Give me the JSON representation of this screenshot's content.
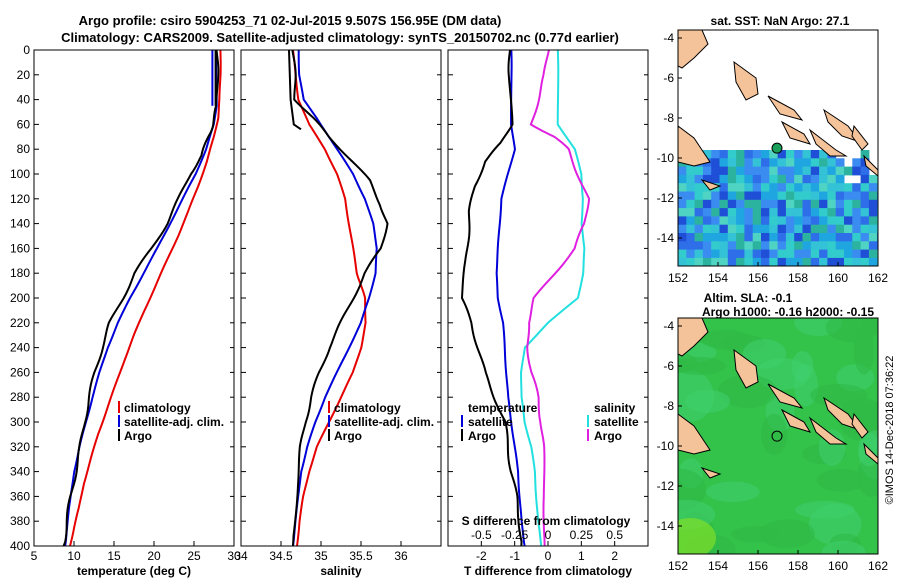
{
  "header": {
    "title_line1": "Argo profile: csiro 5904253_71 02-Jul-2015 9.507S 156.95E (DM data)",
    "title_line2": "Climatology: CARS2009. Satellite-adjusted climatology: synTS_20150702.nc (0.77d earlier)"
  },
  "colors": {
    "climatology": "#e60000",
    "satellite": "#0000d8",
    "argo": "#000000",
    "satellite_salinity": "#22e0e0",
    "climatology_salinity": "#e020e0",
    "land": "#f5c39a"
  },
  "chart_data": [
    {
      "id": "temperature",
      "type": "line",
      "xlabel": "temperature (deg C)",
      "ylabel": "",
      "xlim": [
        5,
        30
      ],
      "ylim": [
        400,
        0
      ],
      "xticks": [
        5,
        10,
        15,
        20,
        25,
        30
      ],
      "yticks": [
        0,
        20,
        40,
        60,
        80,
        100,
        120,
        140,
        160,
        180,
        200,
        220,
        240,
        260,
        280,
        300,
        320,
        340,
        360,
        380,
        400
      ],
      "legend": [
        "climatology",
        "satellite-adj. clim.",
        "Argo"
      ],
      "series": [
        {
          "name": "climatology",
          "color": "#e60000",
          "x": [
            28.3,
            28.3,
            28.2,
            28.0,
            27.5,
            26.6,
            25.5,
            24.3,
            23.0,
            21.6,
            20.2,
            18.8,
            17.5,
            16.3,
            15.2,
            14.1,
            13.0,
            12.1,
            11.2,
            10.6,
            10.0,
            9.5
          ],
          "y": [
            0,
            20,
            40,
            55,
            70,
            90,
            110,
            130,
            150,
            170,
            190,
            210,
            230,
            250,
            270,
            290,
            310,
            330,
            350,
            370,
            385,
            400
          ]
        },
        {
          "name": "satellite-adj. clim.",
          "color": "#0000d8",
          "x": [
            27.8,
            27.8,
            27.8,
            27.5,
            26.5,
            25.2,
            23.6,
            22.0,
            20.4,
            18.7,
            17.0,
            15.5,
            14.2,
            13.2,
            12.3,
            11.5,
            10.7,
            10.0,
            9.4,
            8.9
          ],
          "y": [
            0,
            20,
            45,
            60,
            80,
            100,
            120,
            140,
            160,
            180,
            200,
            220,
            240,
            260,
            280,
            300,
            320,
            340,
            370,
            400
          ]
        },
        {
          "name": "Argo",
          "color": "#000000",
          "x": [
            27.9,
            27.9,
            27.9,
            27.3,
            26.8,
            26.0,
            24.5,
            23.1,
            21.6,
            19.7,
            17.6,
            16.1,
            14.5,
            13.5,
            12.6,
            11.9,
            11.3,
            10.8,
            10.2,
            9.6,
            9.1,
            8.7
          ],
          "y": [
            0,
            20,
            45,
            60,
            70,
            85,
            100,
            120,
            140,
            160,
            180,
            200,
            220,
            240,
            260,
            280,
            300,
            320,
            340,
            360,
            380,
            400
          ]
        }
      ],
      "extra_lines": [
        {
          "name": "satellite-surface",
          "color": "#0000d8",
          "x": [
            27.3,
            27.3
          ],
          "y": [
            0,
            45
          ]
        },
        {
          "name": "argo-surface",
          "color": "#000000",
          "x": [
            27.7,
            27.7
          ],
          "y": [
            0,
            45
          ]
        }
      ]
    },
    {
      "id": "salinity",
      "type": "line",
      "xlabel": "salinity",
      "xlim": [
        34,
        36.5
      ],
      "ylim": [
        400,
        0
      ],
      "xticks": [
        34,
        34.5,
        35,
        35.5,
        36
      ],
      "legend": [
        "climatology",
        "satellite-adj. clim.",
        "Argo"
      ],
      "series": [
        {
          "name": "climatology",
          "color": "#e60000",
          "x": [
            34.65,
            34.68,
            34.72,
            34.85,
            35.05,
            35.2,
            35.3,
            35.35,
            35.4,
            35.45,
            35.5,
            35.55,
            35.56,
            35.5,
            35.4,
            35.25,
            35.1,
            34.95,
            34.85,
            34.78,
            34.73,
            34.7
          ],
          "y": [
            0,
            20,
            40,
            60,
            80,
            100,
            120,
            140,
            160,
            180,
            190,
            200,
            220,
            240,
            260,
            280,
            300,
            320,
            340,
            360,
            380,
            400
          ]
        },
        {
          "name": "satellite-adj. clim.",
          "color": "#0000d8",
          "x": [
            34.72,
            34.73,
            34.78,
            34.95,
            35.2,
            35.4,
            35.55,
            35.65,
            35.7,
            35.68,
            35.6,
            35.5,
            35.35,
            35.2,
            35.05,
            34.93,
            34.83,
            34.75,
            34.7,
            34.65
          ],
          "y": [
            0,
            20,
            40,
            55,
            80,
            100,
            120,
            140,
            160,
            180,
            200,
            220,
            240,
            260,
            280,
            300,
            320,
            340,
            370,
            400
          ]
        },
        {
          "name": "Argo",
          "color": "#000000",
          "x": [
            34.65,
            34.67,
            34.68,
            34.9,
            35.1,
            35.4,
            35.6,
            35.75,
            35.82,
            35.75,
            35.55,
            35.4,
            35.25,
            35.1,
            34.98,
            34.88,
            34.8,
            34.75,
            34.7,
            34.65
          ],
          "y": [
            0,
            20,
            40,
            55,
            70,
            90,
            105,
            125,
            140,
            160,
            180,
            200,
            220,
            240,
            260,
            280,
            300,
            320,
            350,
            400
          ]
        }
      ],
      "extra_lines": [
        {
          "name": "argo-mixedlayer",
          "color": "#000000",
          "x": [
            34.6,
            34.62,
            34.66,
            34.75
          ],
          "y": [
            0,
            40,
            60,
            64
          ]
        }
      ]
    },
    {
      "id": "difference",
      "type": "line",
      "xlabel": "T difference from climatology",
      "xlabel_top": "S difference from climatology",
      "xlim": [
        -3,
        3
      ],
      "ylim": [
        400,
        0
      ],
      "xticks": [
        -2,
        -1,
        0,
        1,
        2
      ],
      "xtick_labels_top": [
        "-0.5",
        "-0.25",
        "0",
        "0.25",
        "0.5"
      ],
      "legend": [
        "temperature",
        "satellite",
        "Argo",
        "salinity",
        "satellite",
        "Argo"
      ],
      "series": [
        {
          "name": "temperature satellite",
          "color": "#0000d8",
          "x": [
            -1.1,
            -1.1,
            -1.1,
            -1.0,
            -1.2,
            -1.4,
            -1.45,
            -1.5,
            -1.55,
            -1.5,
            -1.35,
            -1.3,
            -1.25,
            -1.2,
            -1.1,
            -1.0,
            -0.9,
            -0.85,
            -0.8,
            -0.7
          ],
          "y": [
            0,
            20,
            60,
            80,
            100,
            120,
            140,
            160,
            180,
            200,
            220,
            240,
            260,
            280,
            300,
            320,
            340,
            360,
            380,
            400
          ]
        },
        {
          "name": "temperature Argo",
          "color": "#000000",
          "x": [
            -1.15,
            -1.15,
            -1.1,
            -1.4,
            -1.9,
            -2.2,
            -2.35,
            -2.4,
            -2.45,
            -2.6,
            -2.3,
            -2.1,
            -1.9,
            -1.6,
            -1.3,
            -1.2,
            -1.1,
            -0.95,
            -0.85,
            -0.8
          ],
          "y": [
            0,
            20,
            60,
            75,
            90,
            110,
            130,
            150,
            170,
            200,
            220,
            240,
            260,
            280,
            300,
            320,
            340,
            360,
            380,
            400
          ]
        },
        {
          "name": "salinity satellite",
          "color": "#22e0e0",
          "x": [
            0.3,
            0.3,
            0.3,
            0.8,
            1.0,
            1.05,
            1.0,
            1.1,
            1.05,
            0.9,
            0.0,
            -0.7,
            -0.8,
            -0.8,
            -0.7,
            -0.5,
            -0.4,
            -0.35,
            -0.3,
            -0.2
          ],
          "y": [
            0,
            20,
            60,
            80,
            100,
            120,
            140,
            160,
            180,
            200,
            220,
            240,
            260,
            280,
            300,
            320,
            340,
            360,
            380,
            400
          ]
        },
        {
          "name": "salinity Argo",
          "color": "#e020e0",
          "x": [
            0.0,
            -0.1,
            -0.3,
            -0.5,
            0.2,
            0.6,
            0.9,
            1.2,
            1.1,
            0.8,
            0.2,
            -0.4,
            -0.6,
            -0.6,
            -0.5,
            -0.3,
            -0.2,
            -0.15,
            -0.1,
            -0.1
          ],
          "y": [
            0,
            20,
            40,
            60,
            70,
            80,
            100,
            120,
            140,
            160,
            180,
            200,
            220,
            240,
            260,
            280,
            300,
            320,
            360,
            400
          ]
        }
      ]
    },
    {
      "id": "sst_map",
      "type": "heatmap",
      "title": "sat. SST: NaN Argo: 27.1",
      "xlim": [
        152,
        162
      ],
      "ylim": [
        -15.4,
        -3.6
      ],
      "xticks": [
        152,
        154,
        156,
        158,
        160,
        162
      ],
      "yticks": [
        -4,
        -6,
        -8,
        -10,
        -12,
        -14
      ],
      "argo_position": {
        "lon": 156.95,
        "lat": -9.507
      }
    },
    {
      "id": "sla_map",
      "type": "heatmap",
      "title_line1": "Altim. SLA: -0.1",
      "title_line2": "Argo h1000: -0.16 h2000: -0.15",
      "xlim": [
        152,
        162
      ],
      "ylim": [
        -15.4,
        -3.6
      ],
      "xticks": [
        152,
        154,
        156,
        158,
        160,
        162
      ],
      "yticks": [
        -4,
        -6,
        -8,
        -10,
        -12,
        -14
      ],
      "argo_position": {
        "lon": 156.95,
        "lat": -9.507
      }
    }
  ],
  "watermark": "©IMOS 14-Dec-2018 07:36:22"
}
